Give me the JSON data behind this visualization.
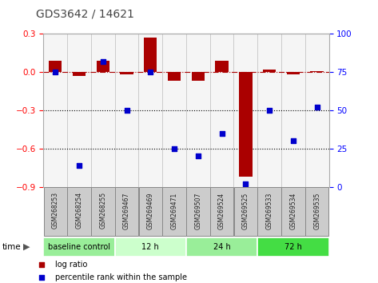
{
  "title": "GDS3642 / 14621",
  "samples": [
    "GSM268253",
    "GSM268254",
    "GSM268255",
    "GSM269467",
    "GSM269469",
    "GSM269471",
    "GSM269507",
    "GSM269524",
    "GSM269525",
    "GSM269533",
    "GSM269534",
    "GSM269535"
  ],
  "log_ratio": [
    0.09,
    -0.03,
    0.09,
    -0.02,
    0.27,
    -0.07,
    -0.07,
    0.09,
    -0.82,
    0.02,
    -0.02,
    0.01
  ],
  "percentile_rank": [
    75,
    14,
    82,
    50,
    75,
    25,
    20,
    35,
    2,
    50,
    30,
    52
  ],
  "groups": [
    {
      "label": "baseline control",
      "start": 0,
      "end": 3,
      "color": "#99ee99"
    },
    {
      "label": "12 h",
      "start": 3,
      "end": 6,
      "color": "#ccffcc"
    },
    {
      "label": "24 h",
      "start": 6,
      "end": 9,
      "color": "#99ee99"
    },
    {
      "label": "72 h",
      "start": 9,
      "end": 12,
      "color": "#44dd44"
    }
  ],
  "bar_color": "#aa0000",
  "dot_color": "#0000cc",
  "left_ylim": [
    -0.9,
    0.3
  ],
  "left_yticks": [
    0.3,
    0.0,
    -0.3,
    -0.6,
    -0.9
  ],
  "right_ylim": [
    0,
    100
  ],
  "right_yticks": [
    100,
    75,
    50,
    25,
    0
  ],
  "hline_y": 0.0,
  "dotted_lines": [
    -0.3,
    -0.6
  ],
  "bar_width": 0.55,
  "bg_color": "#ffffff",
  "plot_bg": "#f5f5f5",
  "label_box_color": "#cccccc",
  "label_box_edge": "#888888"
}
